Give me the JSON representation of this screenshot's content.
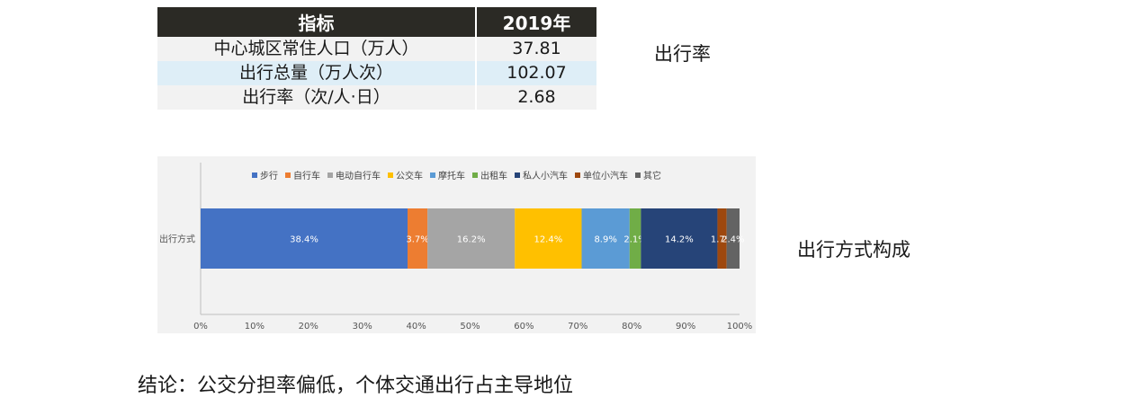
{
  "table": {
    "headers": [
      "指标",
      "2019年"
    ],
    "rows": [
      {
        "label": "中心城区常住人口（万人）",
        "value": "37.81"
      },
      {
        "label": "出行总量（万人次）",
        "value": "102.07"
      },
      {
        "label": "出行率（次/人·日）",
        "value": "2.68"
      }
    ]
  },
  "labels": {
    "trip_rate": "出行率",
    "mode_composition": "出行方式构成",
    "conclusion": "结论：公交分担率偏低，个体交通出行占主导地位"
  },
  "chart_data": {
    "type": "bar",
    "orientation": "horizontal-stacked-100",
    "categories": [
      "出行方式"
    ],
    "series": [
      {
        "name": "步行",
        "values": [
          38.4
        ],
        "label": "38.4%",
        "color": "#4472c4"
      },
      {
        "name": "自行车",
        "values": [
          3.7
        ],
        "label": "3.7%",
        "color": "#ed7d31"
      },
      {
        "name": "电动自行车",
        "values": [
          16.2
        ],
        "label": "16.2%",
        "color": "#a5a5a5"
      },
      {
        "name": "公交车",
        "values": [
          12.4
        ],
        "label": "12.4%",
        "color": "#ffc000"
      },
      {
        "name": "摩托车",
        "values": [
          8.9
        ],
        "label": "8.9%",
        "color": "#5b9bd5"
      },
      {
        "name": "出租车",
        "values": [
          2.1
        ],
        "label": "2.1%",
        "color": "#70ad47"
      },
      {
        "name": "私人小汽车",
        "values": [
          14.2
        ],
        "label": "14.2%",
        "color": "#264478"
      },
      {
        "name": "单位小汽车",
        "values": [
          1.7
        ],
        "label": "1.7%",
        "color": "#9e480e"
      },
      {
        "name": "其它",
        "values": [
          2.4
        ],
        "label": "2.4%",
        "color": "#636363"
      }
    ],
    "x_ticks": [
      "0%",
      "10%",
      "20%",
      "30%",
      "40%",
      "50%",
      "60%",
      "70%",
      "80%",
      "90%",
      "100%"
    ],
    "xlim": [
      0,
      100
    ],
    "legend_position": "top",
    "grid": false
  }
}
